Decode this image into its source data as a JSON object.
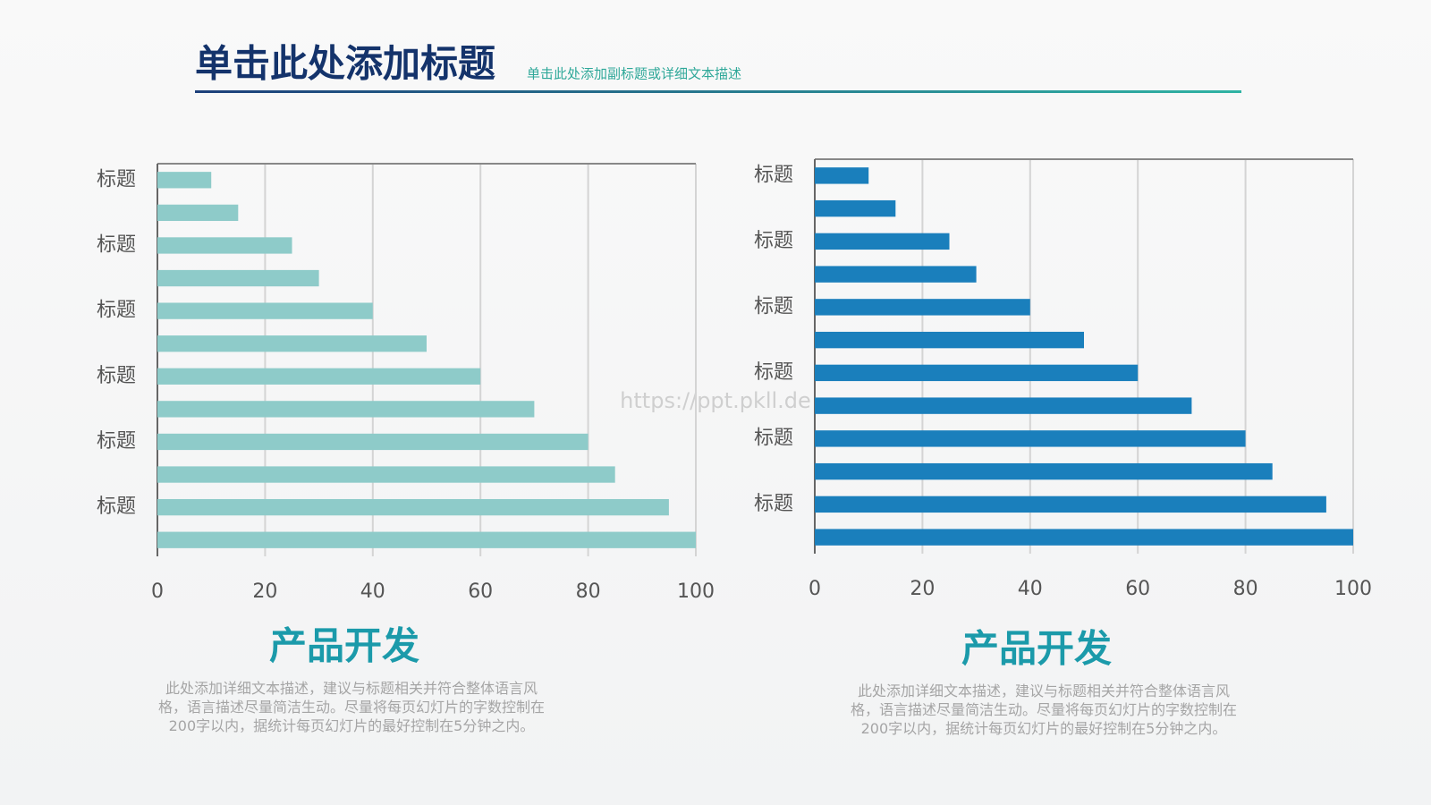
{
  "header": {
    "title": "单击此处添加标题",
    "subtitle": "单击此处添加副标题或详细文本描述"
  },
  "watermark": "https://ppt.pkll.de",
  "chart_data": [
    {
      "type": "bar",
      "orientation": "horizontal",
      "color": "#8ecbc9",
      "categories": [
        "标题",
        null,
        "标题",
        null,
        "标题",
        null,
        "标题",
        null,
        "标题",
        null,
        "标题",
        null
      ],
      "values": [
        10,
        15,
        25,
        30,
        40,
        50,
        60,
        70,
        80,
        85,
        95,
        100
      ],
      "xlim": [
        0,
        100
      ],
      "xticks": [
        0,
        20,
        40,
        60,
        80,
        100
      ],
      "grid": true,
      "title": "产品开发",
      "description": "此处添加详细文本描述，建议与标题相关并符合整体语言风格，语言描述尽量简洁生动。尽量将每页幻灯片的字数控制在200字以内，据统计每页幻灯片的最好控制在5分钟之内。"
    },
    {
      "type": "bar",
      "orientation": "horizontal",
      "color": "#1a7fbc",
      "categories": [
        "标题",
        null,
        "标题",
        null,
        "标题",
        null,
        "标题",
        null,
        "标题",
        null,
        "标题",
        null
      ],
      "values": [
        10,
        15,
        25,
        30,
        40,
        50,
        60,
        70,
        80,
        85,
        95,
        100
      ],
      "xlim": [
        0,
        100
      ],
      "xticks": [
        0,
        20,
        40,
        60,
        80,
        100
      ],
      "grid": true,
      "title": "产品开发",
      "description": "此处添加详细文本描述，建议与标题相关并符合整体语言风格，语言描述尽量简洁生动。尽量将每页幻灯片的字数控制在200字以内，据统计每页幻灯片的最好控制在5分钟之内。"
    }
  ]
}
